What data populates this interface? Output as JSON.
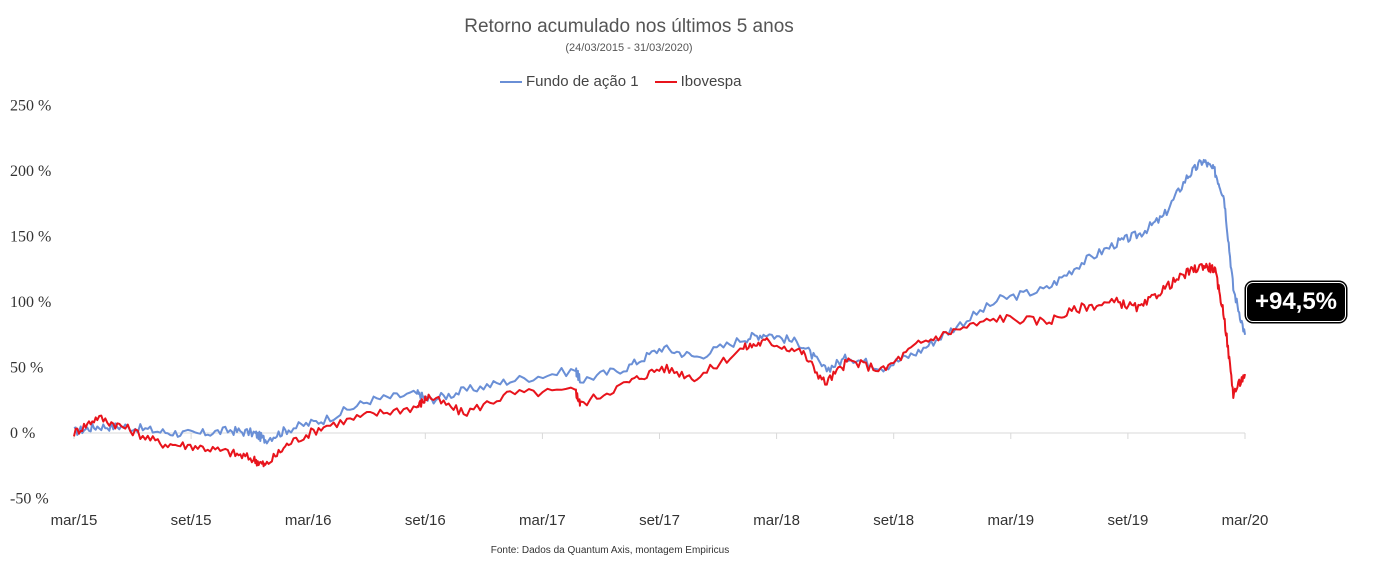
{
  "chart_data": {
    "type": "line",
    "title": "Retorno acumulado nos últimos 5 anos",
    "subtitle": "(24/03/2015 - 31/03/2020)",
    "ylim": [
      -50,
      250
    ],
    "yticks": [
      "250 %",
      "200 %",
      "150 %",
      "100 %",
      "50 %",
      "0 %",
      "-50 %"
    ],
    "ytick_values": [
      250,
      200,
      150,
      100,
      50,
      0,
      -50
    ],
    "xticks": [
      "mar/15",
      "set/15",
      "mar/16",
      "set/16",
      "mar/17",
      "set/17",
      "mar/18",
      "set/18",
      "mar/19",
      "set/19",
      "mar/20"
    ],
    "xlim": [
      2015.23,
      2020.25
    ],
    "x": [
      2015.23,
      2015.33,
      2015.45,
      2015.6,
      2015.75,
      2015.9,
      2016.0,
      2016.05,
      2016.15,
      2016.3,
      2016.5,
      2016.7,
      2016.75,
      2016.9,
      2017.1,
      2017.38,
      2017.4,
      2017.6,
      2017.75,
      2017.9,
      2018.1,
      2018.2,
      2018.35,
      2018.45,
      2018.55,
      2018.7,
      2018.85,
      2019.0,
      2019.2,
      2019.4,
      2019.55,
      2019.7,
      2019.8,
      2019.9,
      2020.0,
      2020.07,
      2020.12,
      2020.16,
      2020.2,
      2020.25
    ],
    "series": [
      {
        "name": "Fundo de ação 1",
        "color": "#6a8fd6",
        "values": [
          1,
          5,
          5,
          1,
          -1,
          2,
          0,
          -5,
          3,
          10,
          25,
          30,
          25,
          32,
          40,
          48,
          40,
          50,
          65,
          58,
          72,
          76,
          68,
          48,
          58,
          50,
          62,
          80,
          102,
          110,
          130,
          145,
          152,
          165,
          195,
          208,
          200,
          180,
          110,
          75
        ]
      },
      {
        "name": "Ibovespa",
        "color": "#e8141c",
        "values": [
          0,
          12,
          4,
          -8,
          -10,
          -15,
          -20,
          -25,
          -8,
          5,
          14,
          20,
          28,
          15,
          30,
          32,
          22,
          38,
          50,
          42,
          65,
          70,
          62,
          38,
          55,
          48,
          68,
          78,
          88,
          85,
          96,
          100,
          95,
          110,
          122,
          128,
          125,
          90,
          30,
          45
        ]
      }
    ],
    "annotation": "+94,5%",
    "grid": false,
    "legend_position": "top-center"
  },
  "source": "Fonte: Dados da Quantum Axis, montagem Empiricus"
}
